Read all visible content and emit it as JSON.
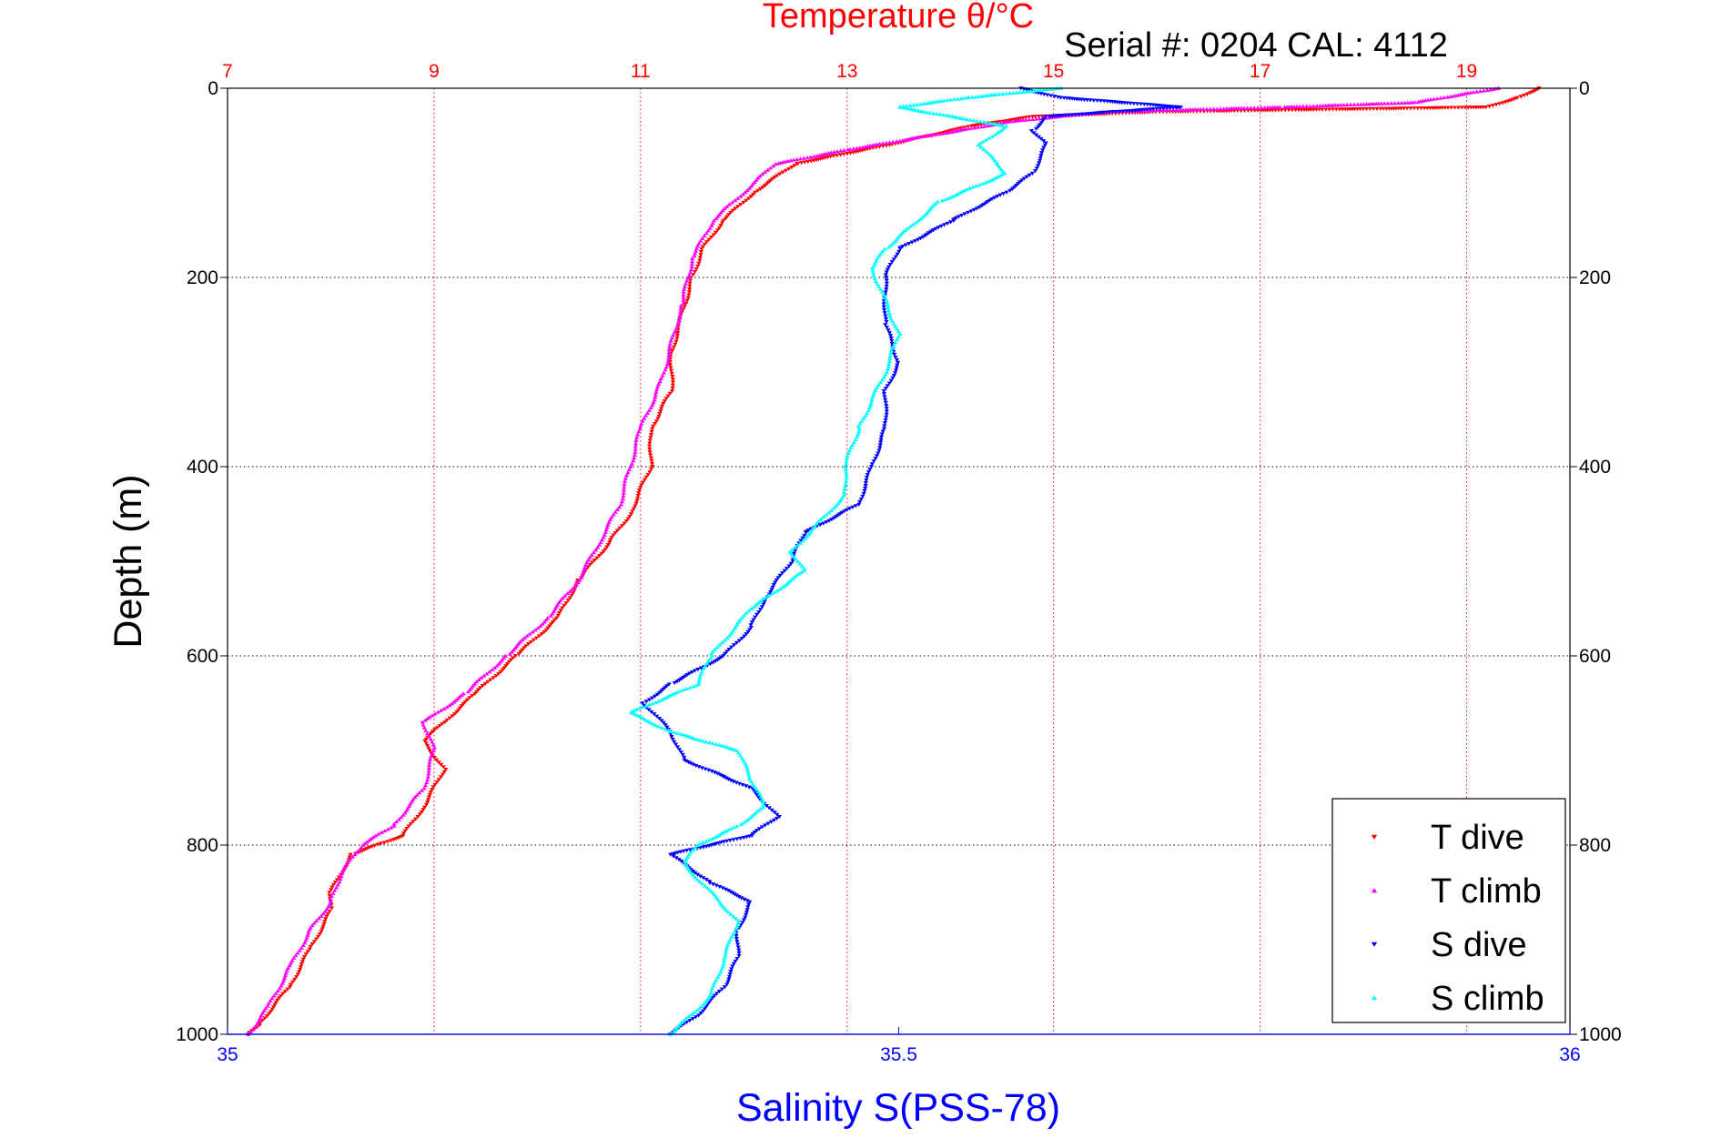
{
  "chart_data": {
    "type": "scatter",
    "title": "Temperature θ/°C",
    "subtitle": "Serial #: 0204  CAL: 4112",
    "ylabel": "Depth (m)",
    "xlabel_bottom": "Salinity S(PSS-78)",
    "y_axis": {
      "range": [
        0,
        1000
      ],
      "reversed": true,
      "ticks": [
        0,
        200,
        400,
        600,
        800,
        1000
      ],
      "grid": true
    },
    "x_top_axis": {
      "label_color": "#ff0000",
      "range": [
        7,
        20
      ],
      "ticks": [
        7,
        9,
        11,
        13,
        15,
        17,
        19
      ],
      "grid": true
    },
    "x_bottom_axis": {
      "label_color": "#0000ff",
      "range": [
        35,
        36
      ],
      "ticks": [
        35,
        35.5,
        36
      ]
    },
    "legend": {
      "position": "bottom-right",
      "entries": [
        "T dive",
        "T climb",
        "S dive",
        "S climb"
      ]
    },
    "series": [
      {
        "name": "T dive",
        "axis": "top",
        "color": "#ff0000",
        "marker": "triangle-down",
        "points": [
          [
            19.7,
            0
          ],
          [
            19.5,
            10
          ],
          [
            19.2,
            20
          ],
          [
            16.0,
            25
          ],
          [
            14.8,
            30
          ],
          [
            14.2,
            40
          ],
          [
            13.4,
            60
          ],
          [
            12.5,
            80
          ],
          [
            12.1,
            110
          ],
          [
            11.8,
            140
          ],
          [
            11.6,
            170
          ],
          [
            11.5,
            200
          ],
          [
            11.4,
            240
          ],
          [
            11.3,
            280
          ],
          [
            11.3,
            320
          ],
          [
            11.1,
            360
          ],
          [
            11.1,
            400
          ],
          [
            10.9,
            450
          ],
          [
            10.7,
            480
          ],
          [
            10.4,
            520
          ],
          [
            10.2,
            560
          ],
          [
            9.8,
            600
          ],
          [
            9.4,
            640
          ],
          [
            9.1,
            670
          ],
          [
            8.9,
            690
          ],
          [
            9.1,
            720
          ],
          [
            8.9,
            760
          ],
          [
            8.7,
            790
          ],
          [
            8.2,
            810
          ],
          [
            8.0,
            850
          ],
          [
            8.0,
            870
          ],
          [
            7.8,
            910
          ],
          [
            7.6,
            950
          ],
          [
            7.3,
            990
          ],
          [
            7.2,
            1000
          ]
        ]
      },
      {
        "name": "T climb",
        "axis": "top",
        "color": "#ff00ff",
        "marker": "triangle-up",
        "points": [
          [
            19.3,
            0
          ],
          [
            18.5,
            15
          ],
          [
            17.2,
            20
          ],
          [
            15.5,
            25
          ],
          [
            14.6,
            35
          ],
          [
            13.8,
            50
          ],
          [
            13.0,
            65
          ],
          [
            12.3,
            80
          ],
          [
            12.0,
            110
          ],
          [
            11.7,
            140
          ],
          [
            11.5,
            180
          ],
          [
            11.4,
            230
          ],
          [
            11.3,
            270
          ],
          [
            11.2,
            310
          ],
          [
            11.0,
            360
          ],
          [
            10.9,
            400
          ],
          [
            10.8,
            440
          ],
          [
            10.6,
            480
          ],
          [
            10.4,
            520
          ],
          [
            10.1,
            560
          ],
          [
            9.7,
            600
          ],
          [
            9.3,
            640
          ],
          [
            8.9,
            670
          ],
          [
            9.0,
            700
          ],
          [
            8.9,
            740
          ],
          [
            8.6,
            780
          ],
          [
            8.3,
            800
          ],
          [
            8.1,
            830
          ],
          [
            8.0,
            860
          ],
          [
            7.8,
            890
          ],
          [
            7.6,
            930
          ],
          [
            7.4,
            970
          ],
          [
            7.2,
            1000
          ]
        ]
      },
      {
        "name": "S dive",
        "axis": "bottom",
        "color": "#0000ff",
        "marker": "triangle-down",
        "points": [
          [
            35.59,
            0
          ],
          [
            35.62,
            10
          ],
          [
            35.71,
            20
          ],
          [
            35.61,
            30
          ],
          [
            35.6,
            45
          ],
          [
            35.61,
            60
          ],
          [
            35.6,
            90
          ],
          [
            35.58,
            110
          ],
          [
            35.54,
            140
          ],
          [
            35.5,
            170
          ],
          [
            35.49,
            200
          ],
          [
            35.49,
            250
          ],
          [
            35.5,
            290
          ],
          [
            35.49,
            320
          ],
          [
            35.49,
            360
          ],
          [
            35.48,
            400
          ],
          [
            35.47,
            440
          ],
          [
            35.43,
            470
          ],
          [
            35.42,
            500
          ],
          [
            35.4,
            540
          ],
          [
            35.39,
            570
          ],
          [
            35.37,
            600
          ],
          [
            35.33,
            630
          ],
          [
            35.31,
            650
          ],
          [
            35.33,
            680
          ],
          [
            35.34,
            710
          ],
          [
            35.39,
            740
          ],
          [
            35.41,
            770
          ],
          [
            35.39,
            790
          ],
          [
            35.33,
            810
          ],
          [
            35.36,
            840
          ],
          [
            35.39,
            860
          ],
          [
            35.38,
            890
          ],
          [
            35.38,
            920
          ],
          [
            35.37,
            950
          ],
          [
            35.35,
            980
          ],
          [
            35.33,
            1000
          ]
        ]
      },
      {
        "name": "S climb",
        "axis": "bottom",
        "color": "#00ffff",
        "marker": "triangle-up",
        "points": [
          [
            35.62,
            0
          ],
          [
            35.55,
            10
          ],
          [
            35.5,
            20
          ],
          [
            35.58,
            40
          ],
          [
            35.56,
            60
          ],
          [
            35.58,
            90
          ],
          [
            35.53,
            120
          ],
          [
            35.49,
            170
          ],
          [
            35.48,
            190
          ],
          [
            35.5,
            260
          ],
          [
            35.49,
            300
          ],
          [
            35.47,
            360
          ],
          [
            35.46,
            400
          ],
          [
            35.46,
            430
          ],
          [
            35.44,
            460
          ],
          [
            35.42,
            490
          ],
          [
            35.43,
            510
          ],
          [
            35.39,
            550
          ],
          [
            35.36,
            600
          ],
          [
            35.35,
            630
          ],
          [
            35.3,
            660
          ],
          [
            35.33,
            680
          ],
          [
            35.38,
            700
          ],
          [
            35.39,
            730
          ],
          [
            35.4,
            760
          ],
          [
            35.38,
            780
          ],
          [
            35.35,
            800
          ],
          [
            35.34,
            820
          ],
          [
            35.36,
            850
          ],
          [
            35.38,
            880
          ],
          [
            35.37,
            920
          ],
          [
            35.36,
            960
          ],
          [
            35.33,
            1000
          ]
        ]
      }
    ]
  }
}
